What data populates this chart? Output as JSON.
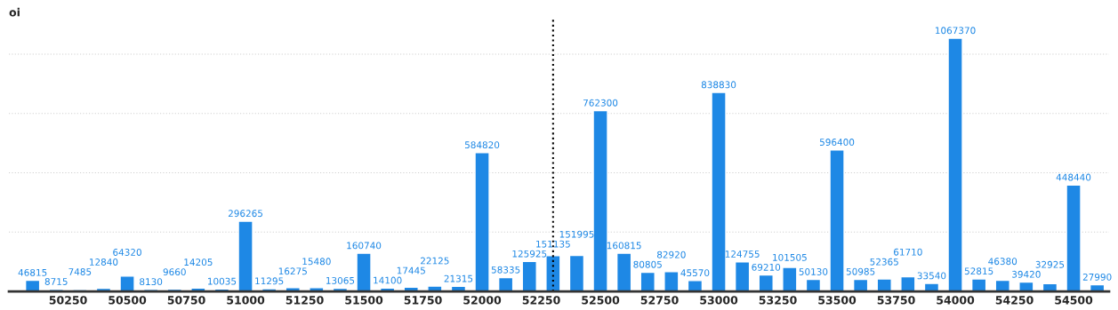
{
  "chart_data": {
    "type": "bar",
    "ylabel": "oi",
    "x": [
      50100,
      50200,
      50300,
      50400,
      50500,
      50600,
      50700,
      50800,
      50900,
      51000,
      51100,
      51200,
      51300,
      51400,
      51500,
      51600,
      51700,
      51800,
      51900,
      52000,
      52100,
      52200,
      52300,
      52400,
      52500,
      52600,
      52700,
      52800,
      52900,
      53000,
      53100,
      53200,
      53300,
      53400,
      53500,
      53600,
      53700,
      53800,
      53900,
      54000,
      54100,
      54200,
      54300,
      54400,
      54500,
      54600
    ],
    "values": [
      46815,
      8715,
      7485,
      12840,
      64320,
      8130,
      9660,
      14205,
      10035,
      296265,
      11295,
      16275,
      15480,
      13065,
      160740,
      14100,
      17445,
      22125,
      21315,
      584820,
      58335,
      125925,
      151135,
      151995,
      762300,
      160815,
      80805,
      82920,
      45570,
      838830,
      124755,
      69210,
      101505,
      50130,
      596400,
      50985,
      52365,
      61710,
      33540,
      1067370,
      52815,
      46380,
      39420,
      32925,
      448440,
      27990
    ],
    "color": "#1e88e5",
    "data_labels": true,
    "xlim": [
      50000,
      54650
    ],
    "xticks": [
      50250,
      50500,
      50750,
      51000,
      51250,
      51500,
      51750,
      52000,
      52250,
      52500,
      52750,
      53000,
      53250,
      53500,
      53750,
      54000,
      54250,
      54500
    ],
    "ylim": [
      0,
      1150000
    ],
    "yticks": [
      {
        "value": 250000,
        "label": null
      },
      {
        "value": 500000,
        "label": null
      },
      {
        "value": 750000,
        "label": null
      },
      {
        "value": 1000000,
        "label": null
      }
    ],
    "tick_labels": "x",
    "grid": "y",
    "ref_lines": [
      {
        "axis": "x",
        "value": 52300,
        "line_style": "dotted",
        "color": "#000000"
      }
    ]
  }
}
